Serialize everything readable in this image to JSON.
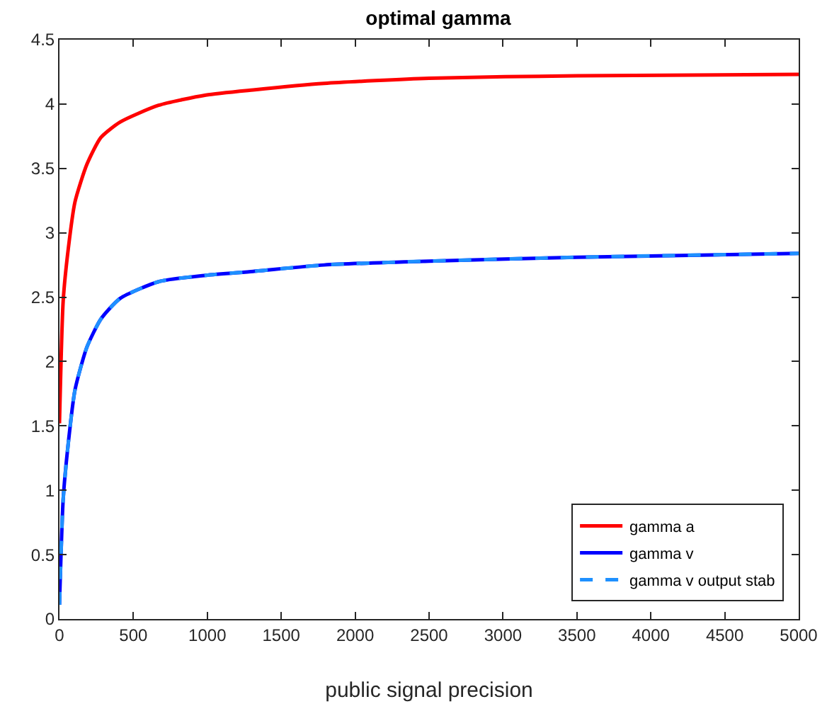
{
  "chart_data": {
    "type": "line",
    "title": "optimal gamma",
    "xlabel": "public signal precision",
    "x": [
      0,
      25,
      60,
      105,
      185,
      280,
      410,
      670,
      990,
      1310,
      1790,
      2500,
      3500,
      5000
    ],
    "series": [
      {
        "name": "gamma a",
        "color": "#ff0000",
        "line_style": "solid",
        "values": [
          1.52,
          2.47,
          2.88,
          3.24,
          3.53,
          3.74,
          3.86,
          3.99,
          4.07,
          4.11,
          4.16,
          4.2,
          4.22,
          4.23
        ]
      },
      {
        "name": "gamma v",
        "color": "#0000ff",
        "line_style": "solid",
        "values": [
          0.11,
          0.93,
          1.37,
          1.78,
          2.11,
          2.33,
          2.49,
          2.62,
          2.67,
          2.7,
          2.75,
          2.78,
          2.81,
          2.84
        ]
      },
      {
        "name": "gamma v output stab",
        "color": "#1e90ff",
        "line_style": "dashed",
        "values": [
          0.11,
          0.93,
          1.37,
          1.78,
          2.11,
          2.33,
          2.49,
          2.62,
          2.67,
          2.7,
          2.75,
          2.78,
          2.81,
          2.84
        ]
      }
    ],
    "xlim": [
      0,
      5000
    ],
    "xticks": [
      0,
      500,
      1000,
      1500,
      2000,
      2500,
      3000,
      3500,
      4000,
      4500,
      5000
    ],
    "ylim": [
      0,
      4.5
    ],
    "yticks": [
      0,
      0.5,
      1,
      1.5,
      2,
      2.5,
      3,
      3.5,
      4,
      4.5
    ],
    "legend": "bottom right",
    "grid": false
  }
}
